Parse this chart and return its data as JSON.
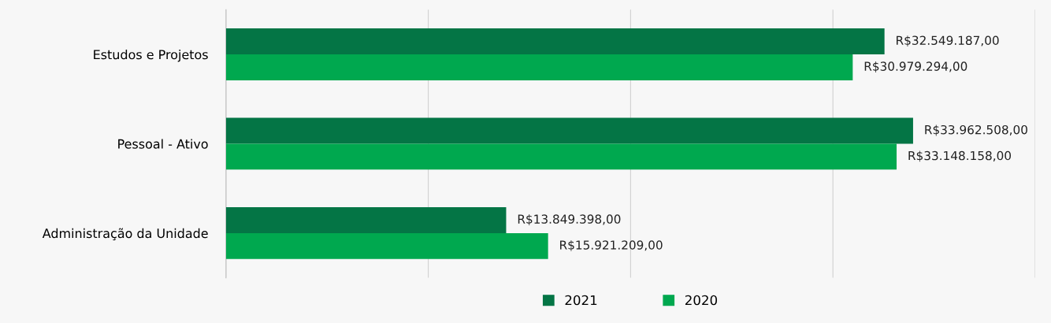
{
  "chart_data": {
    "type": "bar",
    "orientation": "horizontal",
    "categories": [
      "Estudos e Projetos",
      "Pessoal - Ativo",
      "Administração da Unidade"
    ],
    "series": [
      {
        "name": "2021",
        "color": "#047545",
        "values": [
          32549187,
          33962508,
          13849398
        ],
        "value_labels": [
          "R$32.549.187,00",
          "R$33.962.508,00",
          "R$13.849.398,00"
        ]
      },
      {
        "name": "2020",
        "color": "#00a84f",
        "values": [
          30979294,
          33148158,
          15921209
        ],
        "value_labels": [
          "R$30.979.294,00",
          "R$33.148.158,00",
          "R$15.921.209,00"
        ]
      }
    ],
    "xlim": [
      0,
      40000000
    ],
    "xticks": [
      {
        "value": 0,
        "label": null
      },
      {
        "value": 10000000,
        "label": null
      },
      {
        "value": 20000000,
        "label": null
      },
      {
        "value": 30000000,
        "label": null
      },
      {
        "value": 40000000,
        "label": null
      }
    ],
    "tick_labels": "y",
    "grid": "x",
    "legend": "bottom"
  }
}
